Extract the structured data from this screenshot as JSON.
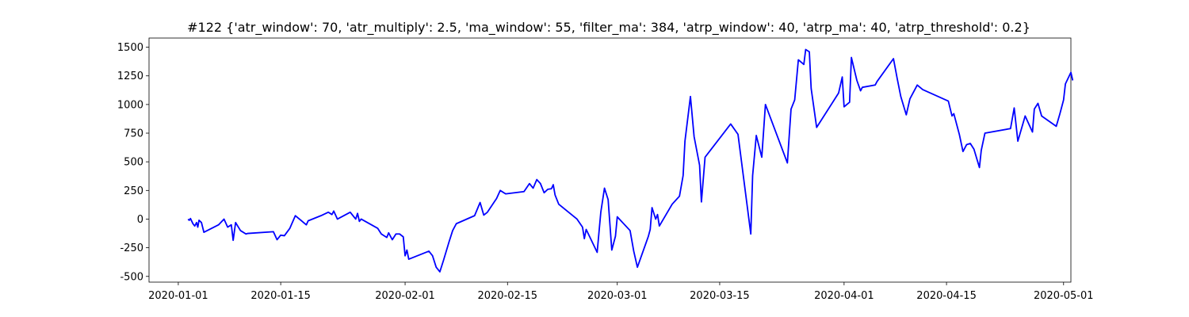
{
  "chart_data": {
    "type": "line",
    "title": "#122 {'atr_window': 70, 'atr_multiply': 2.5, 'ma_window': 55, 'filter_ma': 384, 'atrp_window': 40, 'atrp_ma': 40, 'atrp_threshold': 0.2}",
    "xlabel": "",
    "ylabel": "",
    "xlim": [
      "2019-12-28",
      "2020-05-02"
    ],
    "ylim": [
      -550,
      1580
    ],
    "grid": false,
    "color": "#0000ff",
    "xticks": [
      "2020-01-01",
      "2020-01-15",
      "2020-02-01",
      "2020-02-15",
      "2020-03-01",
      "2020-03-15",
      "2020-04-01",
      "2020-04-15",
      "2020-05-01"
    ],
    "yticks": [
      -500,
      -250,
      0,
      250,
      500,
      750,
      1000,
      1250,
      1500
    ],
    "series": [
      {
        "points": [
          [
            "2020-01-02 08:00",
            0
          ],
          [
            "2020-01-02 12:00",
            -10
          ],
          [
            "2020-01-02 16:00",
            5
          ],
          [
            "2020-01-03 00:00",
            -40
          ],
          [
            "2020-01-03 06:00",
            -60
          ],
          [
            "2020-01-03 12:00",
            -30
          ],
          [
            "2020-01-03 16:00",
            -70
          ],
          [
            "2020-01-03 20:00",
            -10
          ],
          [
            "2020-01-04 04:00",
            -30
          ],
          [
            "2020-01-04 12:00",
            -115
          ],
          [
            "2020-01-06 12:00",
            -50
          ],
          [
            "2020-01-07 06:00",
            0
          ],
          [
            "2020-01-07 18:00",
            -70
          ],
          [
            "2020-01-08 06:00",
            -50
          ],
          [
            "2020-01-08 12:00",
            -185
          ],
          [
            "2020-01-08 20:00",
            -30
          ],
          [
            "2020-01-09 12:00",
            -100
          ],
          [
            "2020-01-10 06:00",
            -130
          ],
          [
            "2020-01-10 12:00",
            -125
          ],
          [
            "2020-01-14 00:00",
            -110
          ],
          [
            "2020-01-14 12:00",
            -180
          ],
          [
            "2020-01-15 00:00",
            -140
          ],
          [
            "2020-01-15 12:00",
            -145
          ],
          [
            "2020-01-16 06:00",
            -80
          ],
          [
            "2020-01-17 00:00",
            30
          ],
          [
            "2020-01-18 12:00",
            -50
          ],
          [
            "2020-01-18 18:00",
            -15
          ],
          [
            "2020-01-20 12:00",
            30
          ],
          [
            "2020-01-21 12:00",
            60
          ],
          [
            "2020-01-22 00:00",
            40
          ],
          [
            "2020-01-22 06:00",
            70
          ],
          [
            "2020-01-22 18:00",
            0
          ],
          [
            "2020-01-24 12:00",
            60
          ],
          [
            "2020-01-25 06:00",
            0
          ],
          [
            "2020-01-25 12:00",
            50
          ],
          [
            "2020-01-25 18:00",
            -20
          ],
          [
            "2020-01-26 00:00",
            0
          ],
          [
            "2020-01-28 06:00",
            -80
          ],
          [
            "2020-01-28 18:00",
            -130
          ],
          [
            "2020-01-29 12:00",
            -160
          ],
          [
            "2020-01-29 18:00",
            -120
          ],
          [
            "2020-01-30 06:00",
            -180
          ],
          [
            "2020-01-30 18:00",
            -130
          ],
          [
            "2020-01-31 06:00",
            -130
          ],
          [
            "2020-01-31 18:00",
            -155
          ],
          [
            "2020-02-01 00:00",
            -320
          ],
          [
            "2020-02-01 06:00",
            -270
          ],
          [
            "2020-02-01 12:00",
            -350
          ],
          [
            "2020-02-04 06:00",
            -280
          ],
          [
            "2020-02-04 18:00",
            -320
          ],
          [
            "2020-02-05 06:00",
            -420
          ],
          [
            "2020-02-05 18:00",
            -460
          ],
          [
            "2020-02-06 06:00",
            -360
          ],
          [
            "2020-02-07 00:00",
            -200
          ],
          [
            "2020-02-07 12:00",
            -100
          ],
          [
            "2020-02-08 00:00",
            -40
          ],
          [
            "2020-02-10 12:00",
            30
          ],
          [
            "2020-02-11 06:00",
            145
          ],
          [
            "2020-02-11 18:00",
            35
          ],
          [
            "2020-02-12 06:00",
            60
          ],
          [
            "2020-02-13 12:00",
            180
          ],
          [
            "2020-02-14 00:00",
            250
          ],
          [
            "2020-02-14 18:00",
            220
          ],
          [
            "2020-02-17 06:00",
            240
          ],
          [
            "2020-02-18 00:00",
            310
          ],
          [
            "2020-02-18 12:00",
            270
          ],
          [
            "2020-02-19 00:00",
            345
          ],
          [
            "2020-02-19 12:00",
            310
          ],
          [
            "2020-02-20 00:00",
            230
          ],
          [
            "2020-02-20 12:00",
            260
          ],
          [
            "2020-02-21 00:00",
            265
          ],
          [
            "2020-02-21 06:00",
            300
          ],
          [
            "2020-02-21 12:00",
            210
          ],
          [
            "2020-02-22 00:00",
            130
          ],
          [
            "2020-02-24 12:00",
            0
          ],
          [
            "2020-02-25 06:00",
            -70
          ],
          [
            "2020-02-25 12:00",
            -170
          ],
          [
            "2020-02-25 18:00",
            -90
          ],
          [
            "2020-02-27 06:00",
            -290
          ],
          [
            "2020-02-27 18:00",
            60
          ],
          [
            "2020-02-28 06:00",
            270
          ],
          [
            "2020-02-28 18:00",
            170
          ],
          [
            "2020-02-29 06:00",
            -270
          ],
          [
            "2020-02-29 18:00",
            -150
          ],
          [
            "2020-03-01 00:00",
            20
          ],
          [
            "2020-03-02 18:00",
            -100
          ],
          [
            "2020-03-03 06:00",
            -280
          ],
          [
            "2020-03-03 18:00",
            -420
          ],
          [
            "2020-03-05 06:00",
            -150
          ],
          [
            "2020-03-05 12:00",
            -90
          ],
          [
            "2020-03-05 18:00",
            100
          ],
          [
            "2020-03-06 06:00",
            0
          ],
          [
            "2020-03-06 12:00",
            40
          ],
          [
            "2020-03-06 18:00",
            -60
          ],
          [
            "2020-03-08 12:00",
            130
          ],
          [
            "2020-03-09 12:00",
            200
          ],
          [
            "2020-03-10 00:00",
            380
          ],
          [
            "2020-03-10 06:00",
            680
          ],
          [
            "2020-03-11 00:00",
            1070
          ],
          [
            "2020-03-11 12:00",
            720
          ],
          [
            "2020-03-12 06:00",
            470
          ],
          [
            "2020-03-12 12:00",
            150
          ],
          [
            "2020-03-13 00:00",
            540
          ],
          [
            "2020-03-16 12:00",
            830
          ],
          [
            "2020-03-17 12:00",
            740
          ],
          [
            "2020-03-19 06:00",
            -130
          ],
          [
            "2020-03-19 12:00",
            380
          ],
          [
            "2020-03-20 00:00",
            730
          ],
          [
            "2020-03-20 18:00",
            540
          ],
          [
            "2020-03-21 06:00",
            1000
          ],
          [
            "2020-03-24 06:00",
            490
          ],
          [
            "2020-03-24 18:00",
            960
          ],
          [
            "2020-03-25 06:00",
            1040
          ],
          [
            "2020-03-25 18:00",
            1390
          ],
          [
            "2020-03-26 12:00",
            1350
          ],
          [
            "2020-03-26 18:00",
            1480
          ],
          [
            "2020-03-27 06:00",
            1460
          ],
          [
            "2020-03-27 12:00",
            1140
          ],
          [
            "2020-03-28 06:00",
            800
          ],
          [
            "2020-03-31 06:00",
            1100
          ],
          [
            "2020-03-31 18:00",
            1240
          ],
          [
            "2020-04-01 00:00",
            980
          ],
          [
            "2020-04-01 18:00",
            1020
          ],
          [
            "2020-04-02 00:00",
            1410
          ],
          [
            "2020-04-02 18:00",
            1210
          ],
          [
            "2020-04-03 06:00",
            1120
          ],
          [
            "2020-04-03 12:00",
            1150
          ],
          [
            "2020-04-05 06:00",
            1170
          ],
          [
            "2020-04-05 12:00",
            1200
          ],
          [
            "2020-04-07 18:00",
            1400
          ],
          [
            "2020-04-08 06:00",
            1230
          ],
          [
            "2020-04-08 18:00",
            1070
          ],
          [
            "2020-04-09 12:00",
            910
          ],
          [
            "2020-04-10 00:00",
            1050
          ],
          [
            "2020-04-11 00:00",
            1170
          ],
          [
            "2020-04-11 18:00",
            1130
          ],
          [
            "2020-04-15 06:00",
            1030
          ],
          [
            "2020-04-15 18:00",
            900
          ],
          [
            "2020-04-16 00:00",
            920
          ],
          [
            "2020-04-16 18:00",
            740
          ],
          [
            "2020-04-17 06:00",
            590
          ],
          [
            "2020-04-17 18:00",
            650
          ],
          [
            "2020-04-18 06:00",
            660
          ],
          [
            "2020-04-18 18:00",
            610
          ],
          [
            "2020-04-19 12:00",
            450
          ],
          [
            "2020-04-19 18:00",
            600
          ],
          [
            "2020-04-20 06:00",
            750
          ],
          [
            "2020-04-23 18:00",
            790
          ],
          [
            "2020-04-24 06:00",
            970
          ],
          [
            "2020-04-24 18:00",
            680
          ],
          [
            "2020-04-25 18:00",
            900
          ],
          [
            "2020-04-26 18:00",
            760
          ],
          [
            "2020-04-27 00:00",
            960
          ],
          [
            "2020-04-27 12:00",
            1010
          ],
          [
            "2020-04-28 00:00",
            900
          ],
          [
            "2020-04-30 00:00",
            810
          ],
          [
            "2020-04-30 12:00",
            920
          ],
          [
            "2020-05-01 00:00",
            1040
          ],
          [
            "2020-05-01 06:00",
            1180
          ],
          [
            "2020-05-02 00:00",
            1280
          ],
          [
            "2020-05-02 06:00",
            1210
          ]
        ]
      }
    ]
  }
}
